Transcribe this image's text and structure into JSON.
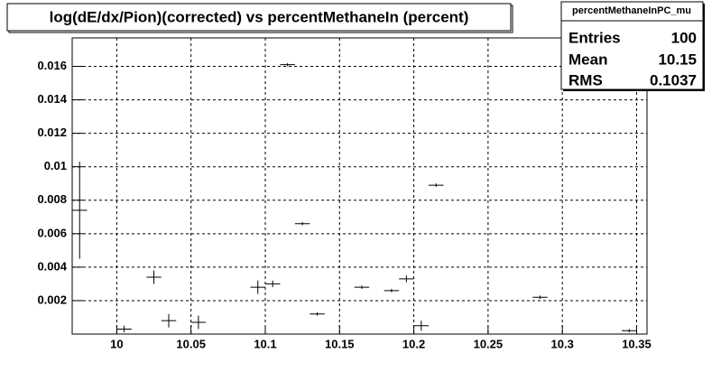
{
  "chart_data": {
    "type": "errorbar",
    "title": "log(dE/dx/Pion)(corrected) vs percentMethaneIn (percent)",
    "stats": {
      "name": "percentMethaneInPC_mu",
      "rows": [
        {
          "label": "Entries",
          "value": 100
        },
        {
          "label": "Mean",
          "value": 10.15
        },
        {
          "label": "RMS",
          "value": 0.1037
        }
      ]
    },
    "x": [
      9.975,
      10.005,
      10.025,
      10.035,
      10.055,
      10.095,
      10.105,
      10.115,
      10.125,
      10.135,
      10.165,
      10.185,
      10.195,
      10.205,
      10.215,
      10.285,
      10.345
    ],
    "values": [
      0.0074,
      0.0003,
      0.0034,
      0.0008,
      0.0007,
      0.0028,
      0.003,
      0.0161,
      0.0066,
      0.0012,
      0.0028,
      0.0026,
      0.0033,
      0.0005,
      0.0089,
      0.0022,
      0.0002
    ],
    "errors": [
      0.0029,
      0.0002,
      0.0004,
      0.0004,
      0.0004,
      0.0004,
      0.0002,
      0.0001,
      0.0001,
      0.0001,
      0.0001,
      0.0001,
      0.0002,
      0.0003,
      0.0001,
      0.0001,
      0.0001
    ],
    "color": "#000000",
    "xlim": [
      9.97,
      10.357
    ],
    "xticks": [
      10,
      10.05,
      10.1,
      10.15,
      10.2,
      10.25,
      10.3,
      10.35
    ],
    "ylim": [
      0,
      0.0177
    ],
    "yticks": [
      0.002,
      0.004,
      0.006,
      0.008,
      0.01,
      0.012,
      0.014,
      0.016
    ],
    "grid": true
  }
}
